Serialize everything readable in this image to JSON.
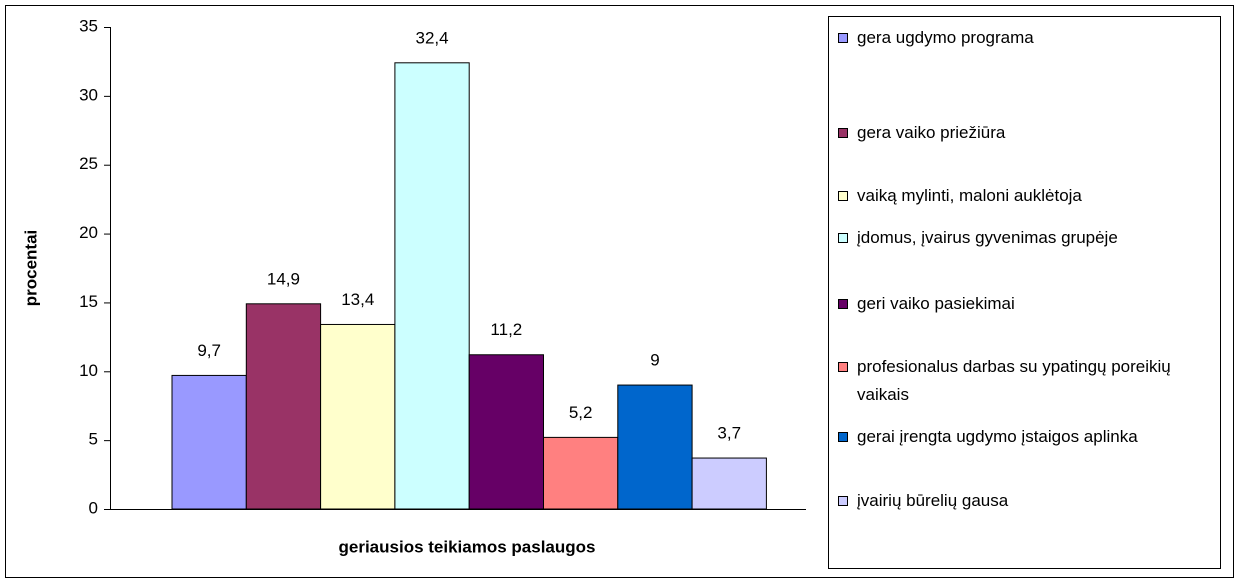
{
  "chart_data": {
    "type": "bar",
    "x_label": "geriausios teikiamos paslaugos",
    "y_label": "procentai",
    "categories": [
      null
    ],
    "series": [
      {
        "name": "gera ugdymo programa",
        "color": "#9999ff",
        "values": [
          9.7
        ],
        "value_labels": [
          "9,7"
        ]
      },
      {
        "name": "gera vaiko priežiūra",
        "color": "#993366",
        "values": [
          14.9
        ],
        "value_labels": [
          "14,9"
        ]
      },
      {
        "name": "vaiką mylinti, maloni auklėtoja",
        "color": "#ffffcc",
        "values": [
          13.4
        ],
        "value_labels": [
          "13,4"
        ]
      },
      {
        "name": "įdomus, įvairus gyvenimas grupėje",
        "color": "#ccffff",
        "values": [
          32.4
        ],
        "value_labels": [
          "32,4"
        ]
      },
      {
        "name": "geri vaiko pasiekimai",
        "color": "#660066",
        "values": [
          11.2
        ],
        "value_labels": [
          "11,2"
        ]
      },
      {
        "name": "profesionalus darbas su ypatingų poreikių vaikais",
        "color": "#ff8080",
        "values": [
          5.2
        ],
        "value_labels": [
          "5,2"
        ]
      },
      {
        "name": "gerai įrengta ugdymo įstaigos aplinka",
        "color": "#0066cc",
        "values": [
          9
        ],
        "value_labels": [
          "9"
        ]
      },
      {
        "name": "įvairių būrelių gausa",
        "color": "#ccccff",
        "values": [
          3.7
        ],
        "value_labels": [
          "3,7"
        ]
      }
    ],
    "ylim": [
      0,
      35
    ],
    "yticks": [
      0,
      5,
      10,
      15,
      20,
      25,
      30,
      35
    ],
    "legend": "right"
  }
}
